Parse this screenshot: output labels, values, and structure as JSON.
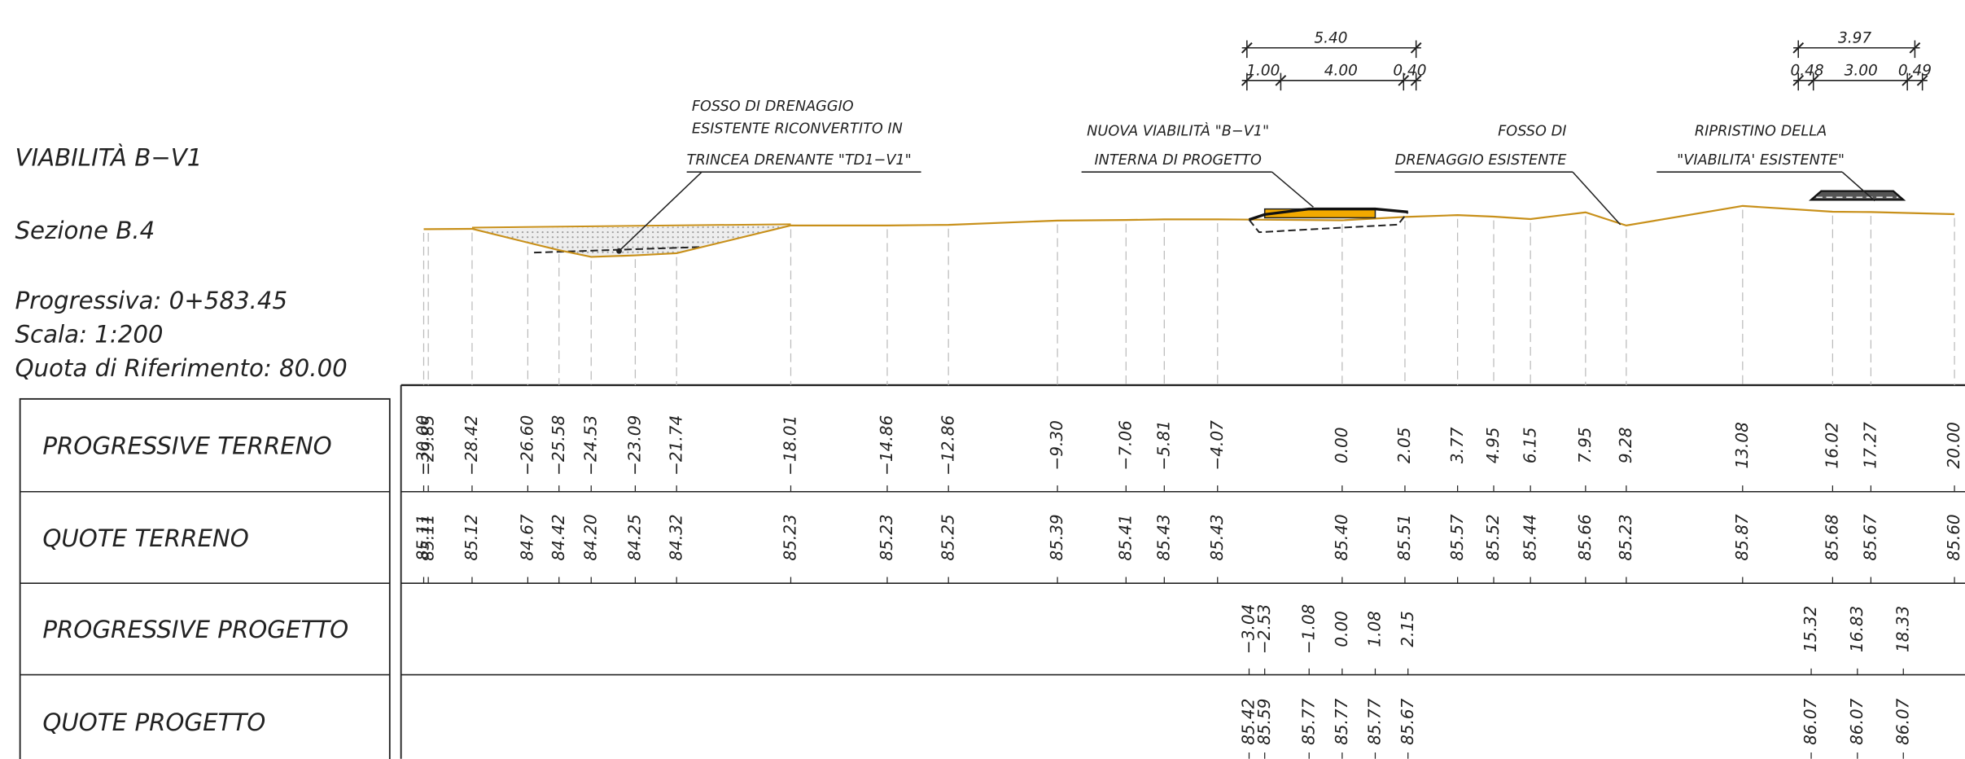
{
  "header": {
    "title": "VIABILITÀ B−V1",
    "section": "Sezione B.4",
    "progressiva": "Progressiva: 0+583.45",
    "scala": "Scala: 1:200",
    "quota": "Quota di Riferimento: 80.00"
  },
  "annotations": [
    {
      "lines": [
        "FOSSO DI DRENAGGIO",
        "ESISTENTE RICONVERTITO IN",
        "TRINCEA DRENANTE \"TD1−V1\""
      ]
    },
    {
      "lines": [
        "NUOVA VIABILITÀ \"B−V1\"",
        "INTERNA DI PROGETTO"
      ]
    },
    {
      "lines": [
        "FOSSO DI",
        "DRENAGGIO ESISTENTE"
      ]
    },
    {
      "lines": [
        "RIPRISTINO DELLA",
        "\"VIABILITA' ESISTENTE\""
      ]
    }
  ],
  "dimensions": [
    {
      "total": "5.40",
      "parts": [
        "1.00",
        "4.00",
        "0.40"
      ]
    },
    {
      "total": "3.97",
      "parts": [
        "0.48",
        "3.00",
        "0.49"
      ]
    }
  ],
  "table": {
    "rows": [
      {
        "label": "PROGRESSIVE TERRENO",
        "values": [
          "−30.00",
          "−29.85",
          "−28.42",
          "−26.60",
          "−25.58",
          "−24.53",
          "−23.09",
          "−21.74",
          "−18.01",
          "−14.86",
          "−12.86",
          "−9.30",
          "−7.06",
          "−5.81",
          "−4.07",
          "0.00",
          "2.05",
          "3.77",
          "4.95",
          "6.15",
          "7.95",
          "9.28",
          "13.08",
          "16.02",
          "17.27",
          "20.00"
        ]
      },
      {
        "label": "QUOTE TERRENO",
        "values": [
          "85.11",
          "85.11",
          "85.12",
          "84.67",
          "84.42",
          "84.20",
          "84.25",
          "84.32",
          "85.23",
          "85.23",
          "85.25",
          "85.39",
          "85.41",
          "85.43",
          "85.43",
          "85.40",
          "85.51",
          "85.57",
          "85.52",
          "85.44",
          "85.66",
          "85.23",
          "85.87",
          "85.68",
          "85.67",
          "85.60"
        ]
      },
      {
        "label": "PROGRESSIVE PROGETTO",
        "values": [
          "−3.04",
          "−2.53",
          "−1.08",
          "0.00",
          "1.08",
          "2.15",
          "15.32",
          "16.83",
          "18.33"
        ]
      },
      {
        "label": "QUOTE PROGETTO",
        "values": [
          "85.42",
          "85.59",
          "85.77",
          "85.77",
          "85.77",
          "85.67",
          "86.07",
          "86.07",
          "86.07"
        ]
      }
    ]
  }
}
